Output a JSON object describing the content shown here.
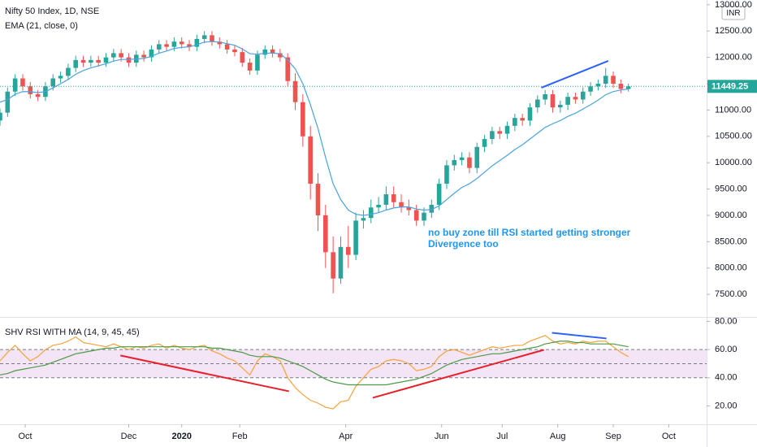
{
  "chart_data": [
    {
      "type": "candlestick",
      "title": "Nifty 50 Index, 1D, NSE",
      "currency": "INR",
      "x": [
        0,
        3,
        6,
        9,
        12,
        15,
        18,
        21,
        24,
        27,
        30,
        33,
        36,
        39,
        42,
        45,
        48,
        51,
        54,
        57,
        60,
        63,
        66,
        69,
        72,
        75,
        78,
        81,
        84,
        87,
        90,
        93,
        96,
        99,
        102,
        105,
        108,
        111,
        114,
        117,
        120,
        123,
        126,
        129,
        132,
        135,
        138,
        141,
        144,
        147,
        150,
        153,
        156,
        159,
        162,
        165,
        168,
        171,
        174,
        177,
        180,
        183,
        186,
        189,
        192,
        195,
        198,
        201,
        204,
        207,
        210,
        213,
        216,
        219,
        222,
        225,
        228,
        231,
        234,
        237,
        240,
        243,
        246,
        249
      ],
      "open": [
        10800,
        10950,
        11350,
        11600,
        11450,
        11300,
        11250,
        11450,
        11600,
        11650,
        11800,
        11950,
        11900,
        11950,
        11900,
        12000,
        12080,
        12000,
        11900,
        12050,
        12000,
        12150,
        12250,
        12200,
        12300,
        12250,
        12200,
        12350,
        12420,
        12300,
        12250,
        12150,
        12100,
        11900,
        11750,
        12050,
        12150,
        12080,
        12000,
        11550,
        11150,
        10500,
        9600,
        9000,
        8300,
        7800,
        8400,
        8250,
        8900,
        8950,
        9150,
        9200,
        9400,
        9250,
        9150,
        9100,
        8900,
        9050,
        9200,
        9600,
        9950,
        10050,
        10100,
        9900,
        10300,
        10450,
        10600,
        10550,
        10700,
        10850,
        10800,
        11050,
        11200,
        11300,
        11050,
        11100,
        11250,
        11200,
        11350,
        11450,
        11500,
        11650,
        11500,
        11400
      ],
      "high": [
        11030,
        11430,
        11680,
        11680,
        11530,
        11380,
        11530,
        11680,
        11730,
        11880,
        12030,
        12030,
        12030,
        12030,
        12080,
        12160,
        12160,
        12080,
        12130,
        12130,
        12230,
        12330,
        12330,
        12380,
        12380,
        12330,
        12430,
        12500,
        12500,
        12380,
        12330,
        12230,
        12180,
        11980,
        12130,
        12230,
        12230,
        12160,
        12080,
        11700,
        11300,
        10700,
        9800,
        9200,
        8600,
        8600,
        8800,
        9050,
        9100,
        9300,
        9350,
        9550,
        9550,
        9400,
        9300,
        9200,
        9150,
        9300,
        9700,
        10050,
        10150,
        10200,
        10200,
        10380,
        10530,
        10680,
        10680,
        10780,
        10930,
        10930,
        11130,
        11280,
        11380,
        11380,
        11180,
        11330,
        11330,
        11430,
        11530,
        11580,
        11800,
        11730,
        11580,
        11500
      ],
      "low": [
        10700,
        10870,
        11270,
        11370,
        11220,
        11170,
        11170,
        11370,
        11520,
        11570,
        11720,
        11820,
        11820,
        11820,
        11820,
        11920,
        11920,
        11820,
        11820,
        11920,
        11920,
        12070,
        12120,
        12120,
        12170,
        12120,
        12120,
        12270,
        12220,
        12170,
        12070,
        12020,
        11820,
        11670,
        11670,
        11970,
        12000,
        11920,
        11450,
        11000,
        10300,
        9300,
        8700,
        8000,
        7520,
        7700,
        8000,
        8150,
        8750,
        8850,
        9050,
        9100,
        9150,
        9050,
        9000,
        8800,
        8800,
        8950,
        9100,
        9500,
        9850,
        9950,
        9800,
        9800,
        10200,
        10350,
        10450,
        10450,
        10600,
        10700,
        10700,
        10950,
        11100,
        10950,
        10950,
        11000,
        11120,
        11120,
        11270,
        11370,
        11420,
        11420,
        11320,
        11350
      ],
      "close": [
        10950,
        11350,
        11600,
        11450,
        11300,
        11250,
        11450,
        11600,
        11650,
        11800,
        11950,
        11900,
        11950,
        11900,
        12000,
        12080,
        12000,
        11900,
        12050,
        12000,
        12150,
        12250,
        12200,
        12300,
        12250,
        12200,
        12350,
        12420,
        12300,
        12250,
        12150,
        12100,
        11900,
        11750,
        12050,
        12150,
        12080,
        12000,
        11550,
        11150,
        10500,
        9600,
        9000,
        8300,
        7800,
        8400,
        8250,
        8900,
        8950,
        9150,
        9200,
        9400,
        9250,
        9150,
        9100,
        8900,
        9050,
        9200,
        9600,
        9950,
        10050,
        10100,
        9900,
        10300,
        10450,
        10600,
        10550,
        10700,
        10850,
        10800,
        11050,
        11200,
        11300,
        11050,
        11100,
        11250,
        11200,
        11350,
        11450,
        11500,
        11650,
        11500,
        11400,
        11449.25
      ],
      "up_color": "#26a69a",
      "down_color": "#ef5350",
      "series": [
        {
          "name": "EMA (21, close, 0)",
          "color": "#4aa3df",
          "values": [
            11150,
            11200,
            11300,
            11350,
            11350,
            11330,
            11350,
            11420,
            11500,
            11580,
            11680,
            11750,
            11800,
            11840,
            11880,
            11930,
            11960,
            11960,
            11970,
            11980,
            12020,
            12080,
            12120,
            12170,
            12190,
            12200,
            12240,
            12290,
            12300,
            12290,
            12260,
            12230,
            12160,
            12070,
            12060,
            12080,
            12080,
            12070,
            11950,
            11780,
            11500,
            11100,
            10650,
            10100,
            9600,
            9300,
            9100,
            9020,
            9000,
            9020,
            9050,
            9100,
            9140,
            9160,
            9160,
            9120,
            9100,
            9110,
            9180,
            9300,
            9420,
            9530,
            9600,
            9700,
            9820,
            9940,
            10040,
            10140,
            10250,
            10340,
            10450,
            10560,
            10670,
            10740,
            10800,
            10880,
            10940,
            11020,
            11100,
            11190,
            11290,
            11350,
            11380,
            11400
          ]
        }
      ],
      "trendlines": [
        {
          "x": [
            214.5,
            241
          ],
          "y": [
            11424,
            11934
          ],
          "color": "#2962ff"
        }
      ],
      "annotations": [
        "no buy zone till RSI started getting stronger",
        "Divergence too"
      ],
      "xlim": [
        0,
        280
      ],
      "ylim": [
        7070,
        13090
      ],
      "yticks": [
        {
          "value": 7500,
          "label": "7500.00"
        },
        {
          "value": 8000,
          "label": "8000.00"
        },
        {
          "value": 8500,
          "label": "8500.00"
        },
        {
          "value": 9000,
          "label": "9000.00"
        },
        {
          "value": 9500,
          "label": "9500.00"
        },
        {
          "value": 10000,
          "label": "10000.00"
        },
        {
          "value": 10500,
          "label": "10500.00"
        },
        {
          "value": 11000,
          "label": "11000.00"
        },
        {
          "value": 11500,
          "label": "11500.00"
        },
        {
          "value": 12000,
          "label": "12000.00"
        },
        {
          "value": 12500,
          "label": "12500.00"
        },
        {
          "value": 13000,
          "label": "13000.00"
        }
      ],
      "last_price_color": "#26a69a"
    },
    {
      "type": "line",
      "title": "SHV RSI WITH MA (14, 9, 45, 45)",
      "x": [
        0,
        3,
        6,
        9,
        12,
        15,
        18,
        21,
        24,
        27,
        30,
        33,
        36,
        39,
        42,
        45,
        48,
        51,
        54,
        57,
        60,
        63,
        66,
        69,
        72,
        75,
        78,
        81,
        84,
        87,
        90,
        93,
        96,
        99,
        102,
        105,
        108,
        111,
        114,
        117,
        120,
        123,
        126,
        129,
        132,
        135,
        138,
        141,
        144,
        147,
        150,
        153,
        156,
        159,
        162,
        165,
        168,
        171,
        174,
        177,
        180,
        183,
        186,
        189,
        192,
        195,
        198,
        201,
        204,
        207,
        210,
        213,
        216,
        219,
        222,
        225,
        228,
        231,
        234,
        237,
        240,
        243,
        246,
        249
      ],
      "series": [
        {
          "color": "#f7a23b",
          "values": [
            52,
            58,
            63,
            57,
            52,
            55,
            60,
            63,
            64,
            66,
            69,
            65,
            64,
            63,
            62,
            64,
            62,
            60,
            62,
            61,
            63,
            64,
            61,
            63,
            61,
            60,
            62,
            63,
            59,
            57,
            54,
            52,
            47,
            42,
            52,
            57,
            55,
            52,
            40,
            33,
            28,
            24,
            22,
            19,
            18,
            23,
            24,
            34,
            40,
            46,
            48,
            52,
            53,
            52,
            50,
            45,
            46,
            48,
            55,
            59,
            60,
            58,
            56,
            58,
            60,
            62,
            61,
            62,
            63,
            63,
            66,
            68,
            70,
            66,
            64,
            65,
            64,
            66,
            65,
            66,
            66,
            62,
            58,
            55
          ]
        },
        {
          "color": "#4c9a45",
          "values": [
            42,
            43,
            45,
            46,
            47,
            48,
            49,
            51,
            53,
            55,
            57,
            58,
            59,
            60,
            61,
            61,
            62,
            62,
            62,
            62,
            62,
            62,
            62,
            62,
            62,
            62,
            62,
            62,
            61,
            61,
            60,
            59,
            58,
            56,
            55,
            55,
            55,
            54,
            52,
            50,
            48,
            45,
            42,
            39,
            37,
            36,
            35,
            35,
            35,
            35,
            35,
            35,
            36,
            37,
            38,
            39,
            41,
            43,
            46,
            49,
            51,
            53,
            54,
            55,
            56,
            57,
            57,
            58,
            59,
            60,
            61,
            62,
            64,
            65,
            66,
            66,
            65,
            65,
            64,
            64,
            64,
            64,
            63,
            62
          ]
        }
      ],
      "hlines": [
        60,
        50,
        40
      ],
      "band_color": "#f3e5f5",
      "trendlines": [
        {
          "x": [
            47.7,
            114.5
          ],
          "y": [
            55.8,
            30.4
          ],
          "color": "#e8202a"
        },
        {
          "x": [
            147.7,
            215.5
          ],
          "y": [
            25.8,
            59.8
          ],
          "color": "#e8202a"
        },
        {
          "x": [
            218.7,
            240.3
          ],
          "y": [
            71.9,
            67.9
          ],
          "color": "#2962ff"
        }
      ],
      "xlim": [
        0,
        280
      ],
      "ylim": [
        7,
        82
      ],
      "yticks": [
        {
          "value": 20,
          "label": "20.00"
        },
        {
          "value": 40,
          "label": "40.00"
        },
        {
          "value": 60,
          "label": "60.00"
        },
        {
          "value": 80,
          "label": "80.00"
        }
      ],
      "xticks": [
        {
          "value": 10,
          "label": "Oct"
        },
        {
          "value": 51,
          "label": "Dec"
        },
        {
          "value": 72,
          "label": "2020"
        },
        {
          "value": 95,
          "label": "Feb"
        },
        {
          "value": 137,
          "label": "Apr"
        },
        {
          "value": 175,
          "label": "Jun"
        },
        {
          "value": 199,
          "label": "Jul"
        },
        {
          "value": 221,
          "label": "Aug"
        },
        {
          "value": 243,
          "label": "Sep"
        },
        {
          "value": 265,
          "label": "Oct"
        }
      ]
    }
  ]
}
